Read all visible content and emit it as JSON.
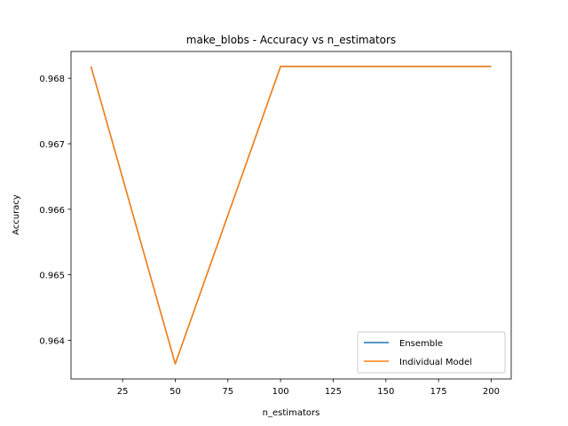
{
  "chart_data": {
    "type": "line",
    "title": "make_blobs - Accuracy vs n_estimators",
    "xlabel": "n_estimators",
    "ylabel": "Accuracy",
    "x": [
      10,
      50,
      100,
      200
    ],
    "series": [
      {
        "name": "Ensemble",
        "color": "#1f77b4",
        "values": [
          0.96818,
          0.96364,
          0.96818,
          0.96818
        ]
      },
      {
        "name": "Individual Model",
        "color": "#ff7f0e",
        "values": [
          0.96818,
          0.96364,
          0.96818,
          0.96818
        ]
      }
    ],
    "xlim": [
      0.5,
      209.5
    ],
    "ylim": [
      0.963409,
      0.968409
    ],
    "xticks": [
      25,
      50,
      75,
      100,
      125,
      150,
      175,
      200
    ],
    "xtick_labels": [
      "25",
      "50",
      "75",
      "100",
      "125",
      "150",
      "175",
      "200"
    ],
    "yticks": [
      0.964,
      0.965,
      0.966,
      0.967,
      0.968
    ],
    "ytick_labels": [
      "0.964",
      "0.965",
      "0.966",
      "0.967",
      "0.968"
    ],
    "grid": false,
    "legend_position": "lower-right"
  }
}
